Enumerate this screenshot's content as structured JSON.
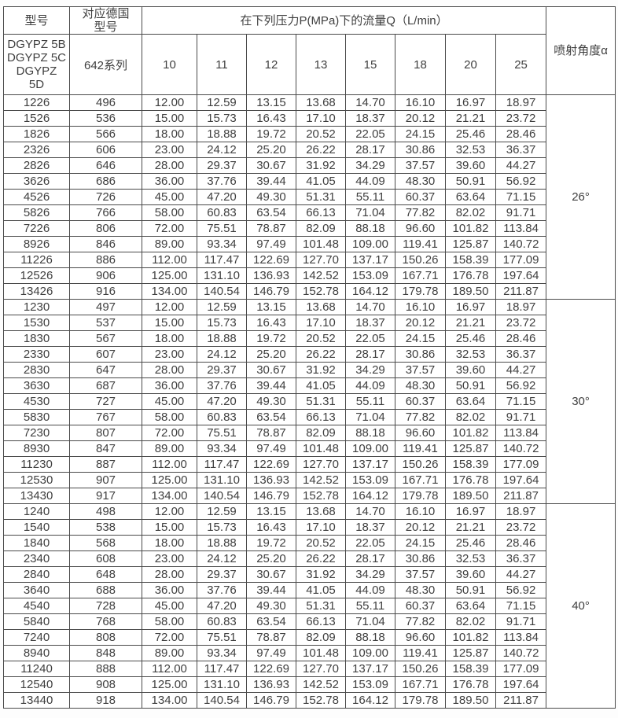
{
  "table": {
    "header": {
      "model": "型号",
      "german_model": "对应德国型号",
      "flow_header": "在下列压力P(MPa)下的流量Q（L/min）",
      "angle_header": "喷射角度α",
      "model_series": "DGYPZ 5B\nDGYPZ 5C\nDGYPZ\n5D",
      "series": "642系列",
      "pressures": [
        "10",
        "11",
        "12",
        "13",
        "15",
        "18",
        "20",
        "25"
      ]
    },
    "blocks": [
      {
        "angle": "26°",
        "rows": [
          [
            "1226",
            "496",
            "12.00",
            "12.59",
            "13.15",
            "13.68",
            "14.70",
            "16.10",
            "16.97",
            "18.97"
          ],
          [
            "1526",
            "536",
            "15.00",
            "15.73",
            "16.43",
            "17.10",
            "18.37",
            "20.12",
            "21.21",
            "23.72"
          ],
          [
            "1826",
            "566",
            "18.00",
            "18.88",
            "19.72",
            "20.52",
            "22.05",
            "24.15",
            "25.46",
            "28.46"
          ],
          [
            "2326",
            "606",
            "23.00",
            "24.12",
            "25.20",
            "26.22",
            "28.17",
            "30.86",
            "32.53",
            "36.37"
          ],
          [
            "2826",
            "646",
            "28.00",
            "29.37",
            "30.67",
            "31.92",
            "34.29",
            "37.57",
            "39.60",
            "44.27"
          ],
          [
            "3626",
            "686",
            "36.00",
            "37.76",
            "39.44",
            "41.05",
            "44.09",
            "48.30",
            "50.91",
            "56.92"
          ],
          [
            "4526",
            "726",
            "45.00",
            "47.20",
            "49.30",
            "51.31",
            "55.11",
            "60.37",
            "63.64",
            "71.15"
          ],
          [
            "5826",
            "766",
            "58.00",
            "60.83",
            "63.54",
            "66.13",
            "71.04",
            "77.82",
            "82.02",
            "91.71"
          ],
          [
            "7226",
            "806",
            "72.00",
            "75.51",
            "78.87",
            "82.09",
            "88.18",
            "96.60",
            "101.82",
            "113.84"
          ],
          [
            "8926",
            "846",
            "89.00",
            "93.34",
            "97.49",
            "101.48",
            "109.00",
            "119.41",
            "125.87",
            "140.72"
          ],
          [
            "11226",
            "886",
            "112.00",
            "117.47",
            "122.69",
            "127.70",
            "137.17",
            "150.26",
            "158.39",
            "177.09"
          ],
          [
            "12526",
            "906",
            "125.00",
            "131.10",
            "136.93",
            "142.52",
            "153.09",
            "167.71",
            "176.78",
            "197.64"
          ],
          [
            "13426",
            "916",
            "134.00",
            "140.54",
            "146.79",
            "152.78",
            "164.12",
            "179.78",
            "189.50",
            "211.87"
          ]
        ]
      },
      {
        "angle": "30°",
        "rows": [
          [
            "1230",
            "497",
            "12.00",
            "12.59",
            "13.15",
            "13.68",
            "14.70",
            "16.10",
            "16.97",
            "18.97"
          ],
          [
            "1530",
            "537",
            "15.00",
            "15.73",
            "16.43",
            "17.10",
            "18.37",
            "20.12",
            "21.21",
            "23.72"
          ],
          [
            "1830",
            "567",
            "18.00",
            "18.88",
            "19.72",
            "20.52",
            "22.05",
            "24.15",
            "25.46",
            "28.46"
          ],
          [
            "2330",
            "607",
            "23.00",
            "24.12",
            "25.20",
            "26.22",
            "28.17",
            "30.86",
            "32.53",
            "36.37"
          ],
          [
            "2830",
            "647",
            "28.00",
            "29.37",
            "30.67",
            "31.92",
            "34.29",
            "37.57",
            "39.60",
            "44.27"
          ],
          [
            "3630",
            "687",
            "36.00",
            "37.76",
            "39.44",
            "41.05",
            "44.09",
            "48.30",
            "50.91",
            "56.92"
          ],
          [
            "4530",
            "727",
            "45.00",
            "47.20",
            "49.30",
            "51.31",
            "55.11",
            "60.37",
            "63.64",
            "71.15"
          ],
          [
            "5830",
            "767",
            "58.00",
            "60.83",
            "63.54",
            "66.13",
            "71.04",
            "77.82",
            "82.02",
            "91.71"
          ],
          [
            "7230",
            "807",
            "72.00",
            "75.51",
            "78.87",
            "82.09",
            "88.18",
            "96.60",
            "101.82",
            "113.84"
          ],
          [
            "8930",
            "847",
            "89.00",
            "93.34",
            "97.49",
            "101.48",
            "109.00",
            "119.41",
            "125.87",
            "140.72"
          ],
          [
            "11230",
            "887",
            "112.00",
            "117.47",
            "122.69",
            "127.70",
            "137.17",
            "150.26",
            "158.39",
            "177.09"
          ],
          [
            "12530",
            "907",
            "125.00",
            "131.10",
            "136.93",
            "142.52",
            "153.09",
            "167.71",
            "176.78",
            "197.64"
          ],
          [
            "13430",
            "917",
            "134.00",
            "140.54",
            "146.79",
            "152.78",
            "164.12",
            "179.78",
            "189.50",
            "211.87"
          ]
        ]
      },
      {
        "angle": "40°",
        "rows": [
          [
            "1240",
            "498",
            "12.00",
            "12.59",
            "13.15",
            "13.68",
            "14.70",
            "16.10",
            "16.97",
            "18.97"
          ],
          [
            "1540",
            "538",
            "15.00",
            "15.73",
            "16.43",
            "17.10",
            "18.37",
            "20.12",
            "21.21",
            "23.72"
          ],
          [
            "1840",
            "568",
            "18.00",
            "18.88",
            "19.72",
            "20.52",
            "22.05",
            "24.15",
            "25.46",
            "28.46"
          ],
          [
            "2340",
            "608",
            "23.00",
            "24.12",
            "25.20",
            "26.22",
            "28.17",
            "30.86",
            "32.53",
            "36.37"
          ],
          [
            "2840",
            "648",
            "28.00",
            "29.37",
            "30.67",
            "31.92",
            "34.29",
            "37.57",
            "39.60",
            "44.27"
          ],
          [
            "3640",
            "688",
            "36.00",
            "37.76",
            "39.44",
            "41.05",
            "44.09",
            "48.30",
            "50.91",
            "56.92"
          ],
          [
            "4540",
            "728",
            "45.00",
            "47.20",
            "49.30",
            "51.31",
            "55.11",
            "60.37",
            "63.64",
            "71.15"
          ],
          [
            "5840",
            "768",
            "58.00",
            "60.83",
            "63.54",
            "66.13",
            "71.04",
            "77.82",
            "82.02",
            "91.71"
          ],
          [
            "7240",
            "808",
            "72.00",
            "75.51",
            "78.87",
            "82.09",
            "88.18",
            "96.60",
            "101.82",
            "113.84"
          ],
          [
            "8940",
            "848",
            "89.00",
            "93.34",
            "97.49",
            "101.48",
            "109.00",
            "119.41",
            "125.87",
            "140.72"
          ],
          [
            "11240",
            "888",
            "112.00",
            "117.47",
            "122.69",
            "127.70",
            "137.17",
            "150.26",
            "158.39",
            "177.09"
          ],
          [
            "12540",
            "908",
            "125.00",
            "131.10",
            "136.93",
            "142.52",
            "153.09",
            "167.71",
            "176.78",
            "197.64"
          ],
          [
            "13440",
            "918",
            "134.00",
            "140.54",
            "146.79",
            "152.78",
            "164.12",
            "179.78",
            "189.50",
            "211.87"
          ]
        ]
      }
    ]
  }
}
